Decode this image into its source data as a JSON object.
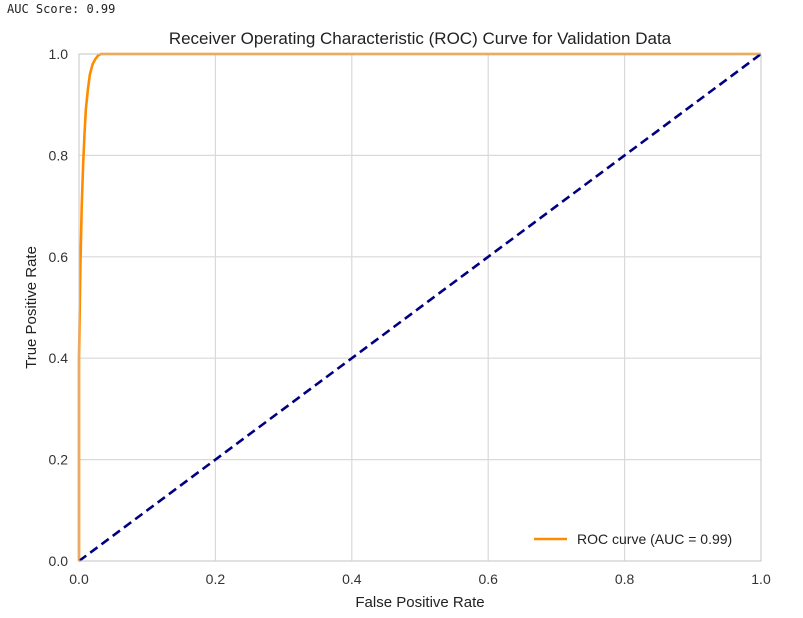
{
  "output": {
    "text": "AUC Score: 0.99"
  },
  "colors": {
    "roc_curve": "#ff8c00",
    "diagonal": "#000080",
    "grid": "#d9d9d9",
    "background": "#ffffff"
  },
  "chart_data": {
    "type": "line",
    "title": "Receiver Operating Characteristic (ROC) Curve for Validation Data",
    "xlabel": "False Positive Rate",
    "ylabel": "True Positive Rate",
    "xlim": [
      0.0,
      1.0
    ],
    "ylim": [
      0.0,
      1.0
    ],
    "xticks": [
      "0.0",
      "0.2",
      "0.4",
      "0.6",
      "0.8",
      "1.0"
    ],
    "yticks": [
      "0.0",
      "0.2",
      "0.4",
      "0.6",
      "0.8",
      "1.0"
    ],
    "grid": true,
    "legend_position": "lower-right",
    "series": [
      {
        "name": "ROC curve (AUC = 0.99)",
        "style": "solid",
        "x": [
          0.0,
          0.0,
          0.002,
          0.004,
          0.006,
          0.008,
          0.01,
          0.013,
          0.016,
          0.02,
          0.024,
          0.028,
          0.032,
          0.035,
          0.1,
          0.3,
          0.5,
          0.7,
          0.9,
          1.0
        ],
        "y": [
          0.0,
          0.4,
          0.58,
          0.7,
          0.78,
          0.84,
          0.89,
          0.93,
          0.96,
          0.98,
          0.99,
          0.997,
          1.0,
          1.0,
          1.0,
          1.0,
          1.0,
          1.0,
          1.0,
          1.0
        ]
      },
      {
        "style": "dashed",
        "x": [
          0.0,
          1.0
        ],
        "y": [
          0.0,
          1.0
        ]
      }
    ]
  }
}
